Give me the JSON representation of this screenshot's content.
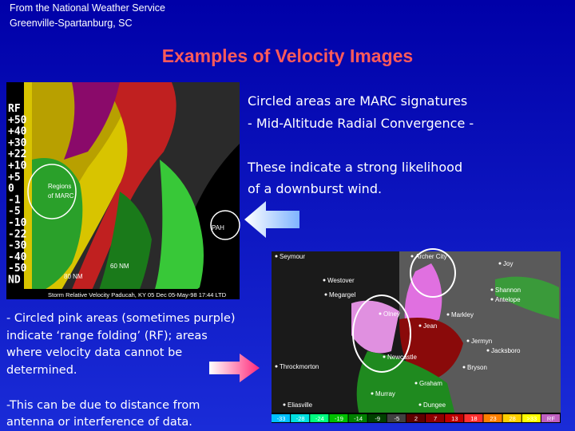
{
  "header": {
    "lines": [
      "From the National Weather Service",
      "Greenville-Spartanburg, SC"
    ]
  },
  "title": "Examples of Velocity Images",
  "right_text": {
    "lines": [
      "Circled areas are MARC signatures",
      "- Mid-Altitude Radial Convergence -",
      "These indicate a strong likelihood",
      "of a downburst wind."
    ]
  },
  "left_text": {
    "lines": [
      "- Circled pink areas (sometimes purple)",
      "indicate ‘range folding’ (RF); areas",
      "where velocity data cannot be",
      "determined.",
      "-This can be due to distance from",
      "antenna or interference of data."
    ]
  },
  "left_radar": {
    "legend": [
      "RF",
      "+50",
      "+40",
      "+30",
      "+22",
      "+10",
      "+5",
      "0",
      "-1",
      "-5",
      "-10",
      "-22",
      "-30",
      "-40",
      "-50",
      "ND"
    ],
    "labels": [
      "Regions",
      "of MARC",
      "PAH",
      "60 NM",
      "80 NM"
    ],
    "caption": "Storm Relative Velocity Paducah, KY 05 Dec 05-May-98 17:44 LTD"
  },
  "right_radar": {
    "cities": [
      "Seymour",
      "Archer City",
      "Joy",
      "Westover",
      "Megargel",
      "Shannon",
      "Antelope",
      "Olney",
      "Jean",
      "Markley",
      "Newcastle",
      "Jermyn",
      "Jacksboro",
      "Throckmorton",
      "Bryson",
      "Graham",
      "Murray",
      "Eliasville",
      "Dungee"
    ],
    "scale": [
      "-33",
      "-28",
      "-24",
      "-19",
      "-14",
      "-9",
      "-5",
      "2",
      "7",
      "13",
      "18",
      "23",
      "28",
      ">33",
      "RF"
    ]
  }
}
